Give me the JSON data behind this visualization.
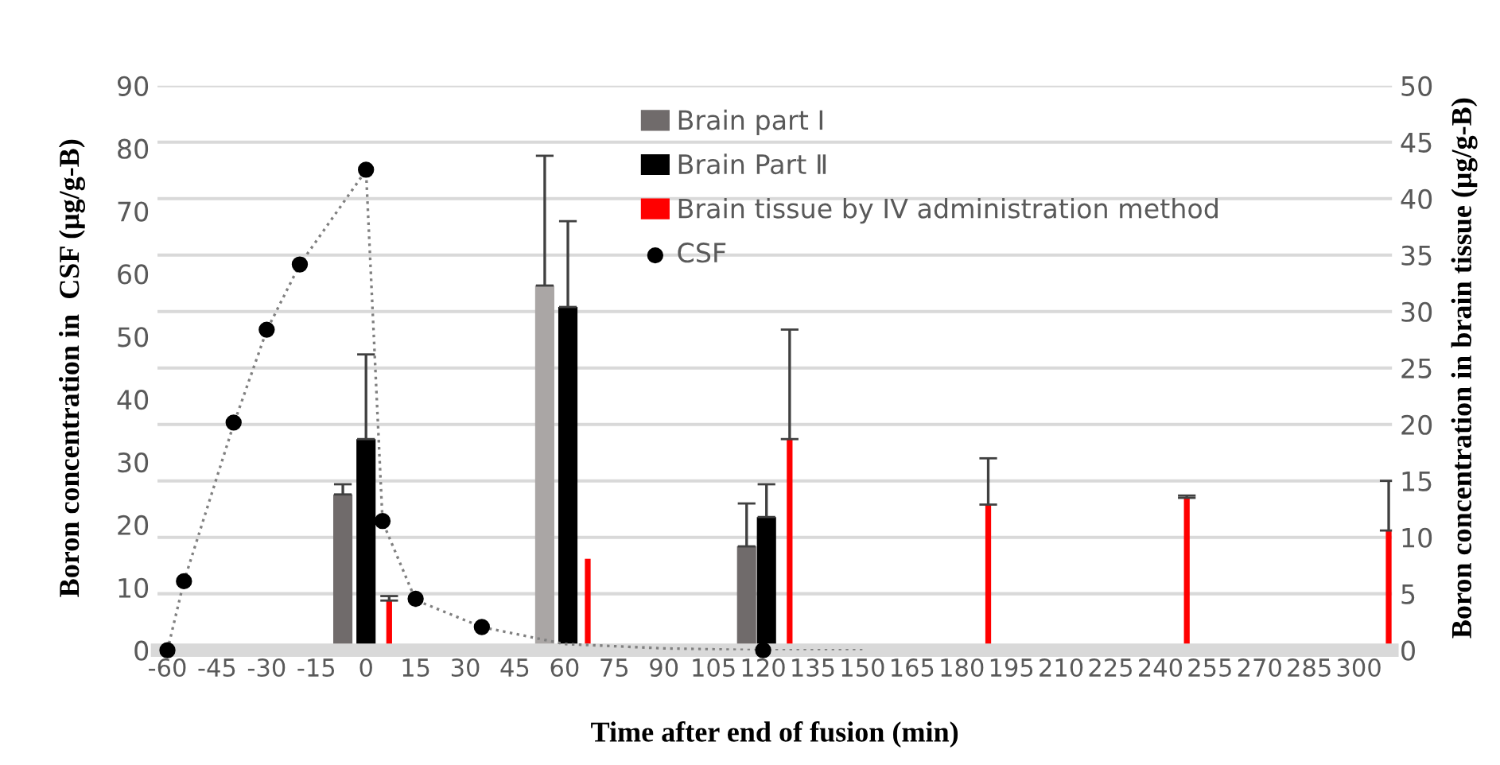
{
  "chart_data": {
    "type": "bar",
    "xlabel": "Time after end of fusion (min)",
    "ylabel": "Boron concentration in  CSF (μg/g-B)",
    "y2label": "Boron concentration in brain tissue (μg/g-B)",
    "xlim": [
      -63,
      310
    ],
    "xticks": [
      -60,
      -45,
      -30,
      -15,
      0,
      15,
      30,
      45,
      60,
      75,
      90,
      105,
      120,
      135,
      150,
      165,
      180,
      195,
      210,
      225,
      240,
      255,
      270,
      285,
      300
    ],
    "ylim": [
      0,
      90
    ],
    "yticks": [
      0,
      10,
      20,
      30,
      40,
      50,
      60,
      70,
      80,
      90
    ],
    "y2lim": [
      0,
      50
    ],
    "y2ticks": [
      0,
      5,
      10,
      15,
      20,
      25,
      30,
      35,
      40,
      45,
      50
    ],
    "grid": "y",
    "legend": "top right",
    "series": [
      {
        "name": "Brain part Ⅰ",
        "axis": "y2",
        "color": "#706b6b",
        "colors": [
          "#706b6b",
          "#aaa6a5",
          "#706b6b"
        ],
        "x": [
          -7,
          54,
          115
        ],
        "values": [
          13.8,
          32.3,
          9.2
        ],
        "errors": [
          [
            13.8,
            14.7
          ],
          [
            32.3,
            43.8
          ],
          [
            9.2,
            13.0
          ]
        ]
      },
      {
        "name": "Brain Part Ⅱ",
        "axis": "y2",
        "color": "#000000",
        "x": [
          0,
          61,
          121
        ],
        "values": [
          18.7,
          30.4,
          11.8
        ],
        "errors": [
          [
            18.7,
            26.2
          ],
          [
            30.4,
            38.0
          ],
          [
            11.8,
            14.7
          ]
        ]
      },
      {
        "name": "Brain tissue by IV administration method",
        "axis": "y2",
        "color": "#ff0000",
        "x": [
          7,
          67,
          128,
          188,
          248,
          309
        ],
        "values": [
          4.4,
          8.1,
          18.7,
          12.9,
          13.5,
          10.6
        ],
        "errors": [
          [
            4.4,
            4.8
          ],
          null,
          [
            18.7,
            28.4
          ],
          [
            12.9,
            17.0
          ],
          [
            13.5,
            13.7
          ],
          [
            10.6,
            15.0
          ]
        ]
      },
      {
        "type": "line",
        "line_style": "dotted",
        "marker": "none",
        "color": "#808080",
        "x": [
          -60,
          -55,
          -40,
          -30,
          -20,
          0,
          5,
          15,
          35,
          60,
          90,
          120,
          150
        ],
        "values": [
          0,
          11,
          36,
          51,
          61.5,
          76.5,
          20.5,
          8,
          3.7,
          1,
          0.3,
          0,
          0
        ]
      },
      {
        "name": "CSF",
        "type": "scatter",
        "marker": "circle",
        "color": "#000000",
        "x": [
          -60,
          -55,
          -40,
          -30,
          -20,
          0,
          5,
          15,
          35,
          120
        ],
        "values": [
          0,
          11,
          36.3,
          51.1,
          61.5,
          76.6,
          20.6,
          8.2,
          3.7,
          0
        ]
      }
    ]
  }
}
